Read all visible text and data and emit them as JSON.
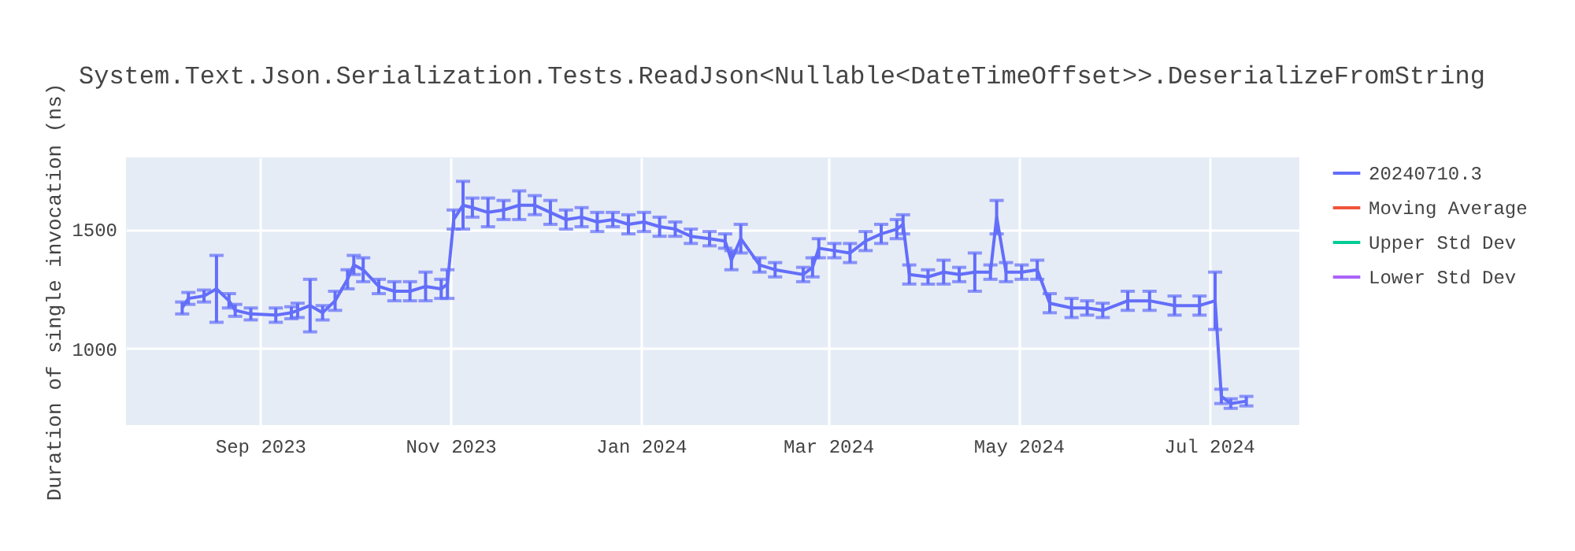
{
  "chart_data": {
    "type": "line",
    "title": "System.Text.Json.Serialization.Tests.ReadJson<Nullable<DateTimeOffset>>.DeserializeFromString",
    "ylabel": "Duration of single invocation (ns)",
    "x": [
      "2023-08-07",
      "2023-08-09",
      "2023-08-14",
      "2023-08-18",
      "2023-08-22",
      "2023-08-24",
      "2023-08-29",
      "2023-09-06",
      "2023-09-11",
      "2023-09-13",
      "2023-09-17",
      "2023-09-21",
      "2023-09-25",
      "2023-09-29",
      "2023-10-01",
      "2023-10-04",
      "2023-10-09",
      "2023-10-14",
      "2023-10-19",
      "2023-10-24",
      "2023-10-29",
      "2023-10-31",
      "2023-11-02",
      "2023-11-05",
      "2023-11-08",
      "2023-11-13",
      "2023-11-18",
      "2023-11-23",
      "2023-11-28",
      "2023-12-03",
      "2023-12-08",
      "2023-12-13",
      "2023-12-18",
      "2023-12-23",
      "2023-12-28",
      "2024-01-02",
      "2024-01-07",
      "2024-01-12",
      "2024-01-17",
      "2024-01-23",
      "2024-01-28",
      "2024-01-30",
      "2024-02-02",
      "2024-02-08",
      "2024-02-13",
      "2024-02-22",
      "2024-02-25",
      "2024-02-27",
      "2024-03-03",
      "2024-03-08",
      "2024-03-13",
      "2024-03-18",
      "2024-03-23",
      "2024-03-25",
      "2024-03-27",
      "2024-04-02",
      "2024-04-07",
      "2024-04-12",
      "2024-04-17",
      "2024-04-22",
      "2024-04-24",
      "2024-04-27",
      "2024-05-02",
      "2024-05-07",
      "2024-05-11",
      "2024-05-18",
      "2024-05-23",
      "2024-05-28",
      "2024-06-05",
      "2024-06-12",
      "2024-06-20",
      "2024-06-28",
      "2024-07-03",
      "2024-07-05",
      "2024-07-08",
      "2024-07-13"
    ],
    "series": [
      {
        "name": "20240710.3",
        "color": "#636efa",
        "values": [
          1170,
          1210,
          1220,
          1250,
          1200,
          1160,
          1145,
          1140,
          1150,
          1160,
          1180,
          1150,
          1200,
          1290,
          1350,
          1330,
          1260,
          1240,
          1240,
          1260,
          1250,
          1270,
          1540,
          1600,
          1590,
          1570,
          1580,
          1600,
          1600,
          1570,
          1540,
          1550,
          1530,
          1540,
          1520,
          1530,
          1510,
          1500,
          1470,
          1460,
          1450,
          1370,
          1460,
          1350,
          1330,
          1310,
          1340,
          1420,
          1410,
          1400,
          1450,
          1480,
          1500,
          1520,
          1310,
          1300,
          1320,
          1310,
          1320,
          1320,
          1550,
          1320,
          1320,
          1330,
          1190,
          1170,
          1170,
          1160,
          1200,
          1200,
          1180,
          1180,
          1200,
          800,
          770,
          780
        ],
        "errors": [
          25,
          25,
          25,
          140,
          30,
          25,
          25,
          30,
          25,
          30,
          110,
          30,
          40,
          40,
          40,
          50,
          30,
          40,
          40,
          60,
          40,
          60,
          40,
          100,
          40,
          60,
          40,
          60,
          40,
          50,
          40,
          40,
          40,
          30,
          40,
          40,
          40,
          30,
          30,
          30,
          30,
          40,
          60,
          30,
          30,
          30,
          40,
          40,
          30,
          40,
          40,
          40,
          40,
          40,
          40,
          30,
          50,
          30,
          80,
          30,
          70,
          40,
          30,
          40,
          40,
          40,
          30,
          30,
          40,
          40,
          40,
          40,
          120,
          30,
          20,
          20
        ]
      },
      {
        "name": "Moving Average",
        "color": "#ef553b",
        "values": [
          null,
          null,
          null,
          null,
          null,
          null,
          null,
          null,
          null,
          null,
          null,
          null,
          null,
          null,
          null,
          null,
          null,
          null,
          null,
          null,
          null,
          null,
          null,
          null,
          null,
          null,
          null,
          null,
          null,
          null,
          null,
          null,
          null,
          null,
          null,
          null,
          null,
          null,
          null,
          null,
          null,
          null,
          null,
          null,
          null,
          null,
          null,
          null,
          null,
          null,
          null,
          null,
          null,
          null,
          null,
          null,
          null,
          null,
          null,
          null,
          null,
          null,
          null,
          null,
          null,
          null,
          null,
          null,
          null,
          null,
          null,
          null,
          null,
          null,
          null,
          null
        ]
      },
      {
        "name": "Upper Std Dev",
        "color": "#00cc96",
        "values": [
          null,
          null,
          null,
          null,
          null,
          null,
          null,
          null,
          null,
          null,
          null,
          null,
          null,
          null,
          null,
          null,
          null,
          null,
          null,
          null,
          null,
          null,
          null,
          null,
          null,
          null,
          null,
          null,
          null,
          null,
          null,
          null,
          null,
          null,
          null,
          null,
          null,
          null,
          null,
          null,
          null,
          null,
          null,
          null,
          null,
          null,
          null,
          null,
          null,
          null,
          null,
          null,
          null,
          null,
          null,
          null,
          null,
          null,
          null,
          null,
          null,
          null,
          null,
          null,
          null,
          null,
          null,
          null,
          null,
          null,
          null,
          null,
          null,
          null,
          null,
          null
        ]
      },
      {
        "name": "Lower Std Dev",
        "color": "#ab63fa",
        "values": [
          null,
          null,
          null,
          null,
          null,
          null,
          null,
          null,
          null,
          null,
          null,
          null,
          null,
          null,
          null,
          null,
          null,
          null,
          null,
          null,
          null,
          null,
          null,
          null,
          null,
          null,
          null,
          null,
          null,
          null,
          null,
          null,
          null,
          null,
          null,
          null,
          null,
          null,
          null,
          null,
          null,
          null,
          null,
          null,
          null,
          null,
          null,
          null,
          null,
          null,
          null,
          null,
          null,
          null,
          null,
          null,
          null,
          null,
          null,
          null,
          null,
          null,
          null,
          null,
          null,
          null,
          null,
          null,
          null,
          null,
          null,
          null,
          null,
          null,
          null,
          null
        ]
      }
    ],
    "xlim": [
      "2023-07-20",
      "2024-07-30"
    ],
    "xticks": [
      {
        "value": "2023-09-01",
        "label": "Sep 2023"
      },
      {
        "value": "2023-11-01",
        "label": "Nov 2023"
      },
      {
        "value": "2024-01-01",
        "label": "Jan 2024"
      },
      {
        "value": "2024-03-01",
        "label": "Mar 2024"
      },
      {
        "value": "2024-05-01",
        "label": "May 2024"
      },
      {
        "value": "2024-07-01",
        "label": "Jul 2024"
      }
    ],
    "ylim": [
      680,
      1800
    ],
    "yticks": [
      1000,
      1500
    ],
    "grid": true,
    "legend": "top right"
  }
}
